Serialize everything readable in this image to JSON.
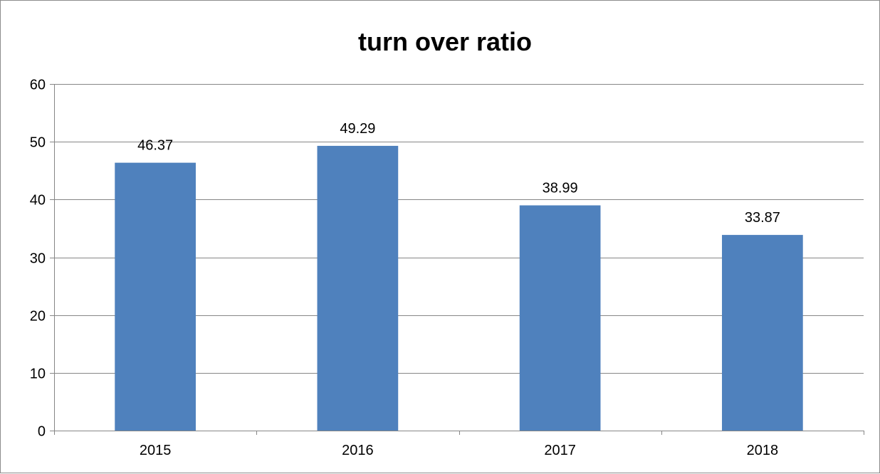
{
  "chart_data": {
    "type": "bar",
    "title": "turn over ratio",
    "xlabel": "",
    "ylabel": "",
    "categories": [
      "2015",
      "2016",
      "2017",
      "2018"
    ],
    "values": [
      46.37,
      49.29,
      38.99,
      33.87
    ],
    "data_labels": [
      "46.37",
      "49.29",
      "38.99",
      "33.87"
    ],
    "ylim": [
      0,
      60
    ],
    "yticks": [
      0,
      10,
      20,
      30,
      40,
      50,
      60
    ],
    "grid": true,
    "legend": "none",
    "bar_color": "#4f81bd"
  }
}
